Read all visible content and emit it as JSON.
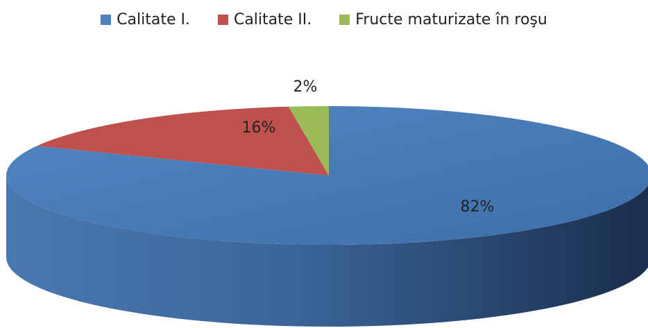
{
  "chart_data": {
    "type": "pie",
    "style": "3d",
    "categories": [
      "Calitate I.",
      "Calitate II.",
      "Fructe maturizate în roşu"
    ],
    "values": [
      82,
      16,
      2
    ],
    "data_labels": [
      "82%",
      "16%",
      "2%"
    ],
    "colors": [
      "#4f81bd",
      "#c0504d",
      "#9bbb59"
    ],
    "legend_position": "top",
    "title": ""
  }
}
